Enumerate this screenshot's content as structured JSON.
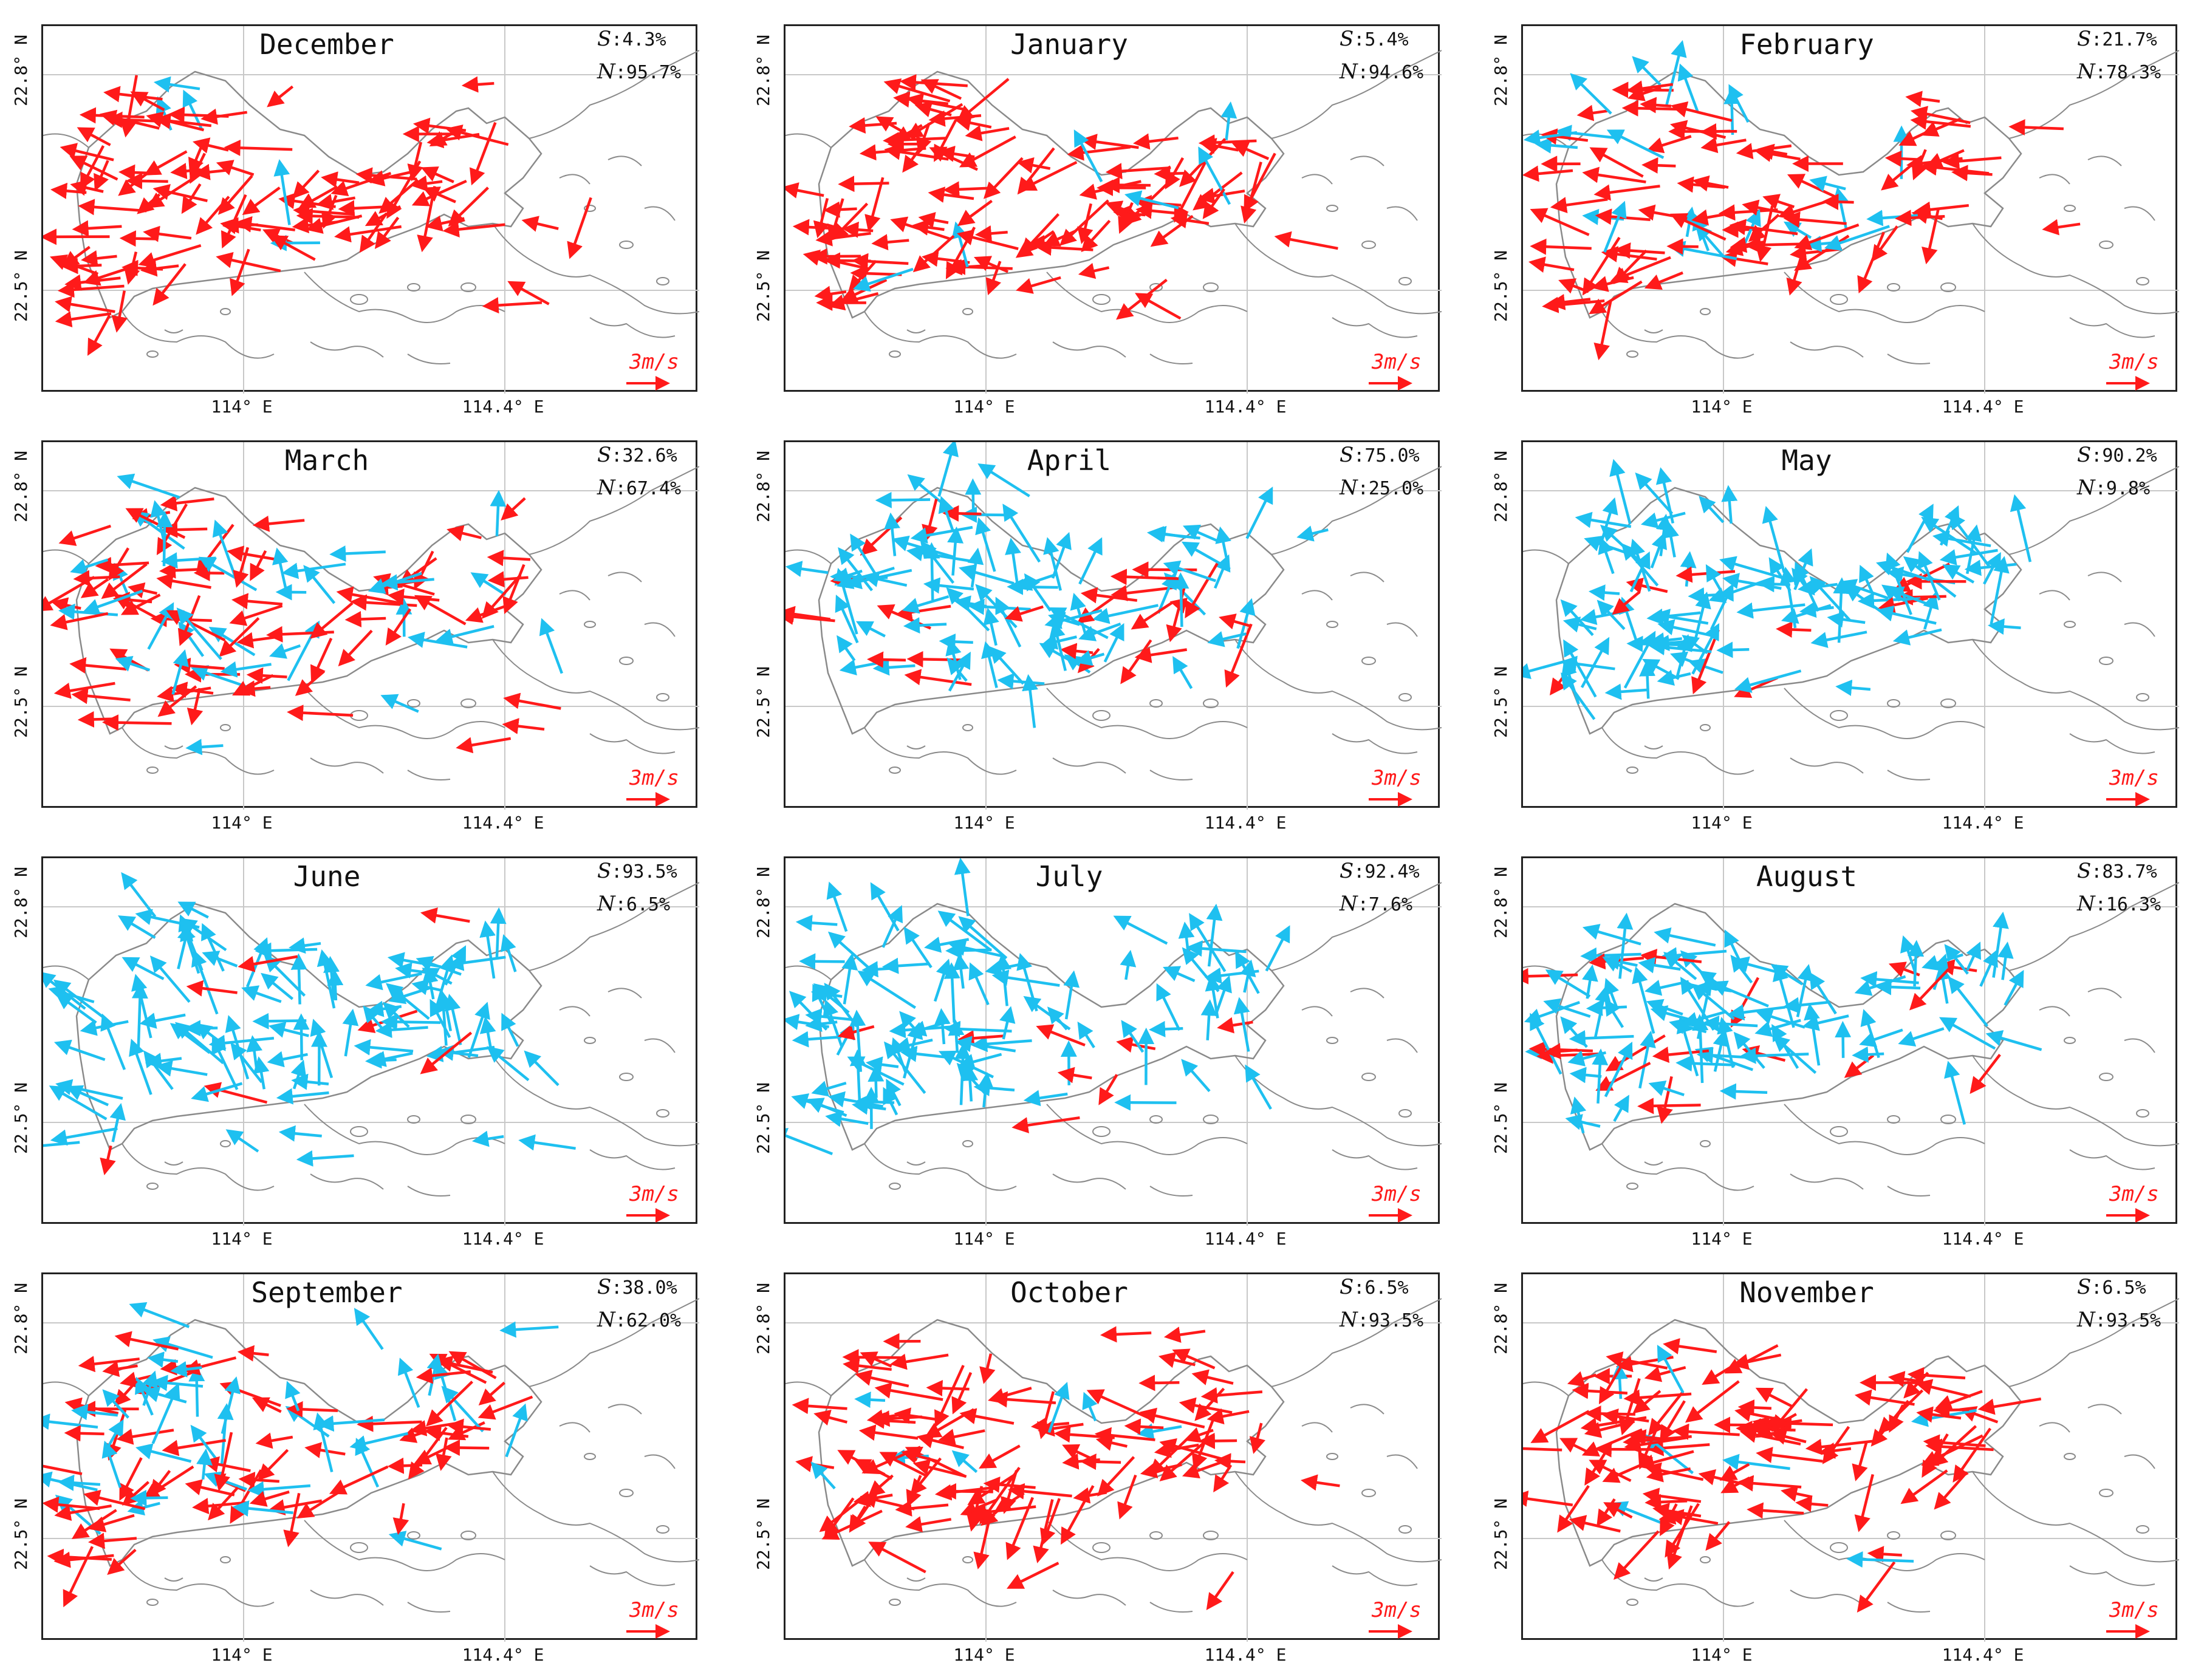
{
  "figure": {
    "x_ticks": [
      "114° E",
      "114.4° E"
    ],
    "y_ticks": [
      "22.8° N",
      "22.5° N"
    ],
    "scale_label": "3m/s",
    "scale_value_ms": 3,
    "stat_s_label": "S",
    "stat_n_label": "N",
    "colors": {
      "north_wind": "#ff1a1a",
      "south_wind": "#1ec0f0",
      "coastline": "#8a8a8a",
      "gridline": "#c8c8c8",
      "frame": "#222222"
    }
  },
  "panels": [
    {
      "month": "December",
      "s": "4.3%",
      "n": "95.7%",
      "s_pct": 4.3,
      "n_pct": 95.7
    },
    {
      "month": "January",
      "s": "5.4%",
      "n": "94.6%",
      "s_pct": 5.4,
      "n_pct": 94.6
    },
    {
      "month": "February",
      "s": "21.7%",
      "n": "78.3%",
      "s_pct": 21.7,
      "n_pct": 78.3
    },
    {
      "month": "March",
      "s": "32.6%",
      "n": "67.4%",
      "s_pct": 32.6,
      "n_pct": 67.4
    },
    {
      "month": "April",
      "s": "75.0%",
      "n": "25.0%",
      "s_pct": 75.0,
      "n_pct": 25.0
    },
    {
      "month": "May",
      "s": "90.2%",
      "n": "9.8%",
      "s_pct": 90.2,
      "n_pct": 9.8
    },
    {
      "month": "June",
      "s": "93.5%",
      "n": "6.5%",
      "s_pct": 93.5,
      "n_pct": 6.5
    },
    {
      "month": "July",
      "s": "92.4%",
      "n": "7.6%",
      "s_pct": 92.4,
      "n_pct": 7.6
    },
    {
      "month": "August",
      "s": "83.7%",
      "n": "16.3%",
      "s_pct": 83.7,
      "n_pct": 16.3
    },
    {
      "month": "September",
      "s": "38.0%",
      "n": "62.0%",
      "s_pct": 38.0,
      "n_pct": 62.0
    },
    {
      "month": "October",
      "s": "6.5%",
      "n": "93.5%",
      "s_pct": 6.5,
      "n_pct": 93.5
    },
    {
      "month": "November",
      "s": "6.5%",
      "n": "93.5%",
      "s_pct": 6.5,
      "n_pct": 93.5
    }
  ]
}
